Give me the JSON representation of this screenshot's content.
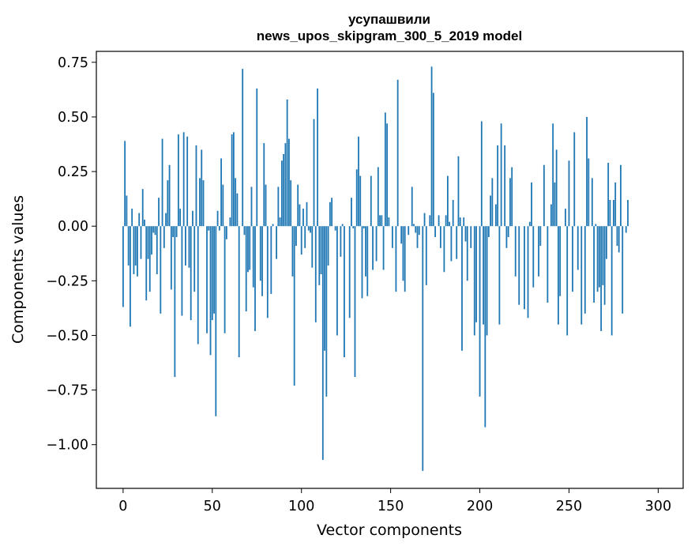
{
  "chart_data": {
    "type": "bar",
    "title": [
      "усупашвили",
      "news_upos_skipgram_300_5_2019 model"
    ],
    "xlabel": "Vector components",
    "ylabel": "Components values",
    "xlim": [
      -15,
      314
    ],
    "ylim": [
      -1.2,
      0.8
    ],
    "xticks": [
      0,
      50,
      100,
      150,
      200,
      250,
      300
    ],
    "xtick_labels": [
      "0",
      "50",
      "100",
      "150",
      "200",
      "250",
      "300"
    ],
    "yticks": [
      -1.0,
      -0.75,
      -0.5,
      -0.25,
      0.0,
      0.25,
      0.5,
      0.75
    ],
    "ytick_labels": [
      "−1.00",
      "−0.75",
      "−0.50",
      "−0.25",
      "0.00",
      "0.25",
      "0.50",
      "0.75"
    ],
    "bar_color": "#1f77b4",
    "grid": false,
    "series": [
      {
        "name": "components",
        "values": [
          -0.37,
          0.39,
          0.14,
          -0.18,
          -0.46,
          0.08,
          -0.22,
          -0.18,
          -0.23,
          0.06,
          -0.15,
          0.17,
          0.03,
          -0.34,
          -0.15,
          -0.3,
          -0.13,
          -0.03,
          -0.04,
          -0.22,
          0.13,
          -0.4,
          0.4,
          -0.1,
          0.06,
          0.21,
          0.28,
          -0.29,
          -0.05,
          -0.69,
          -0.05,
          0.42,
          0.08,
          -0.41,
          0.43,
          -0.18,
          0.41,
          -0.19,
          -0.43,
          0.07,
          -0.3,
          0.37,
          -0.54,
          0.22,
          0.35,
          0.21,
          0.0,
          -0.49,
          -0.02,
          -0.59,
          -0.43,
          -0.4,
          -0.87,
          0.07,
          -0.02,
          0.31,
          0.19,
          -0.49,
          -0.06,
          0.0,
          0.04,
          0.42,
          0.43,
          0.22,
          0.15,
          -0.6,
          0.0,
          0.72,
          -0.04,
          -0.39,
          -0.21,
          -0.2,
          0.18,
          -0.28,
          -0.48,
          0.63,
          0.0,
          -0.25,
          -0.32,
          0.38,
          0.19,
          -0.42,
          0.0,
          -0.31,
          0.01,
          0.0,
          -0.15,
          0.18,
          0.04,
          0.3,
          0.33,
          0.38,
          0.58,
          0.4,
          0.21,
          -0.23,
          -0.73,
          -0.09,
          0.19,
          0.1,
          -0.13,
          0.08,
          -0.1,
          0.11,
          -0.02,
          -0.03,
          -0.19,
          0.49,
          -0.44,
          0.63,
          -0.27,
          -0.22,
          -1.07,
          -0.57,
          -0.78,
          -0.18,
          0.11,
          0.13,
          0.0,
          -0.02,
          -0.5,
          0.0,
          -0.14,
          0.01,
          -0.6,
          0.0,
          0.0,
          -0.42,
          0.13,
          -0.01,
          -0.69,
          0.26,
          0.41,
          0.23,
          -0.33,
          -0.01,
          -0.23,
          -0.32,
          0.0,
          0.23,
          -0.2,
          0.0,
          -0.16,
          0.27,
          0.05,
          0.05,
          -0.2,
          0.52,
          0.47,
          0.04,
          0.0,
          -0.1,
          0.0,
          -0.3,
          0.67,
          0.0,
          -0.08,
          -0.25,
          -0.3,
          0.0,
          -0.04,
          0.0,
          0.18,
          0.01,
          -0.03,
          -0.1,
          -0.04,
          0.0,
          -1.12,
          0.06,
          -0.27,
          0.0,
          0.05,
          0.73,
          0.61,
          -0.05,
          0.0,
          0.05,
          -0.1,
          0.0,
          -0.21,
          0.05,
          0.23,
          0.02,
          -0.16,
          0.12,
          0.0,
          -0.15,
          0.32,
          0.04,
          -0.57,
          0.04,
          -0.07,
          -0.25,
          0.0,
          -0.1,
          0.0,
          -0.5,
          -0.44,
          0.0,
          -0.78,
          0.48,
          -0.45,
          -0.92,
          -0.5,
          -0.05,
          0.14,
          0.22,
          0.0,
          0.1,
          0.37,
          -0.45,
          0.47,
          0.0,
          0.37,
          -0.1,
          -0.05,
          0.22,
          0.27,
          0.0,
          -0.23,
          0.0,
          -0.36,
          0.0,
          0.0,
          -0.38,
          0.0,
          -0.42,
          0.02,
          0.2,
          -0.28,
          0.0,
          0.0,
          -0.23,
          -0.09,
          0.0,
          0.28,
          0.0,
          -0.35,
          0.0,
          0.1,
          0.47,
          0.2,
          0.35,
          -0.45,
          -0.32,
          0.0,
          0.0,
          0.08,
          -0.5,
          0.3,
          0.0,
          -0.3,
          0.43,
          0.0,
          -0.2,
          0.0,
          -0.45,
          0.0,
          -0.4,
          0.5,
          0.31,
          0.0,
          0.22,
          -0.35,
          0.01,
          -0.3,
          -0.28,
          -0.48,
          -0.27,
          -0.36,
          -0.15,
          0.29,
          0.12,
          -0.5,
          0.12,
          0.2,
          -0.09,
          -0.12,
          0.28,
          -0.4,
          0.0,
          -0.03,
          0.12
        ]
      }
    ]
  }
}
